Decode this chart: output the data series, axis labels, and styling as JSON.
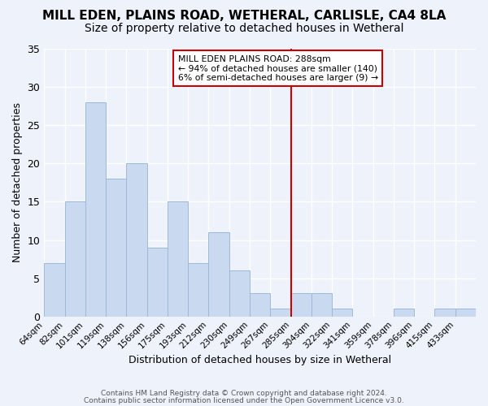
{
  "title": "MILL EDEN, PLAINS ROAD, WETHERAL, CARLISLE, CA4 8LA",
  "subtitle": "Size of property relative to detached houses in Wetheral",
  "xlabel": "Distribution of detached houses by size in Wetheral",
  "ylabel": "Number of detached properties",
  "bar_labels": [
    "64sqm",
    "82sqm",
    "101sqm",
    "119sqm",
    "138sqm",
    "156sqm",
    "175sqm",
    "193sqm",
    "212sqm",
    "230sqm",
    "249sqm",
    "267sqm",
    "285sqm",
    "304sqm",
    "322sqm",
    "341sqm",
    "359sqm",
    "378sqm",
    "396sqm",
    "415sqm",
    "433sqm"
  ],
  "bar_values": [
    7,
    15,
    28,
    18,
    20,
    9,
    15,
    7,
    11,
    6,
    3,
    1,
    3,
    3,
    1,
    0,
    0,
    1,
    0,
    1,
    1
  ],
  "bar_color": "#c9d9f0",
  "bar_edge_color": "#a0b8d8",
  "vline_x": 12,
  "vline_color": "#cc0000",
  "ylim": [
    0,
    35
  ],
  "yticks": [
    0,
    5,
    10,
    15,
    20,
    25,
    30,
    35
  ],
  "annotation_title": "MILL EDEN PLAINS ROAD: 288sqm",
  "annotation_line1": "← 94% of detached houses are smaller (140)",
  "annotation_line2": "6% of semi-detached houses are larger (9) →",
  "annotation_box_color": "#ffffff",
  "annotation_box_edge": "#cc0000",
  "footnote1": "Contains HM Land Registry data © Crown copyright and database right 2024.",
  "footnote2": "Contains public sector information licensed under the Open Government Licence v3.0.",
  "background_color": "#eef2fa",
  "title_fontsize": 11,
  "subtitle_fontsize": 10
}
